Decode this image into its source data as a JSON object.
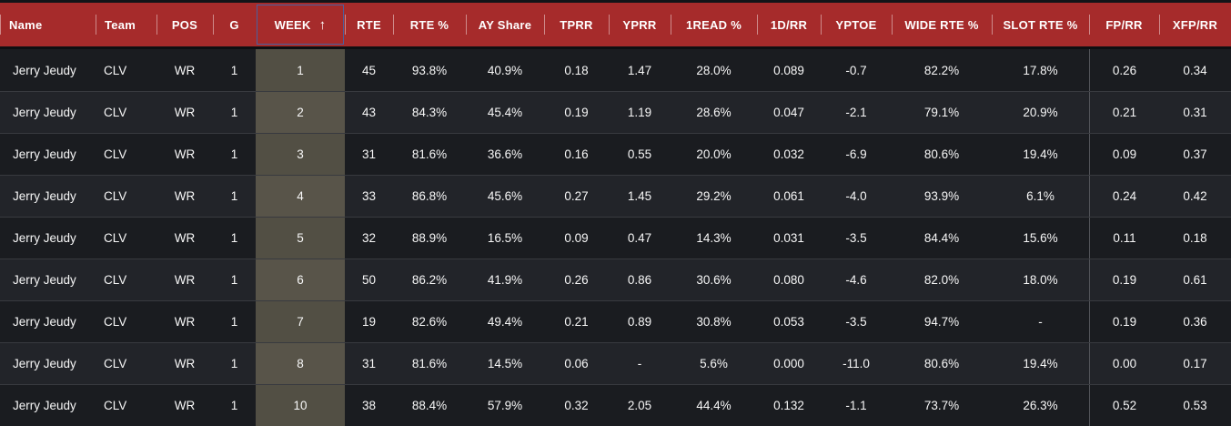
{
  "table": {
    "player": "Jerry Jeudy",
    "sort": {
      "column": "WEEK",
      "direction": "ascending",
      "arrow_glyph": "↑",
      "arrow_icon": "sort-ascending-icon"
    },
    "columns": [
      {
        "key": "name",
        "label": "Name",
        "align": "left"
      },
      {
        "key": "team",
        "label": "Team",
        "align": "left"
      },
      {
        "key": "pos",
        "label": "POS"
      },
      {
        "key": "g",
        "label": "G"
      },
      {
        "key": "week",
        "label": "WEEK",
        "sorted": true
      },
      {
        "key": "rte",
        "label": "RTE"
      },
      {
        "key": "rte_pct",
        "label": "RTE %"
      },
      {
        "key": "ay_share",
        "label": "AY Share"
      },
      {
        "key": "tprr",
        "label": "TPRR"
      },
      {
        "key": "yprr",
        "label": "YPRR"
      },
      {
        "key": "read1_pct",
        "label": "1READ %"
      },
      {
        "key": "1d_rr",
        "label": "1D/RR"
      },
      {
        "key": "yptoe",
        "label": "YPTOE"
      },
      {
        "key": "wide_rte_pct",
        "label": "WIDE RTE %"
      },
      {
        "key": "slot_rte_pct",
        "label": "SLOT RTE %",
        "divider_after": true
      },
      {
        "key": "fp_rr",
        "label": "FP/RR"
      },
      {
        "key": "xfp_rr",
        "label": "XFP/RR"
      }
    ],
    "rows": [
      [
        "Jerry Jeudy",
        "CLV",
        "WR",
        "1",
        "1",
        "45",
        "93.8%",
        "40.9%",
        "0.18",
        "1.47",
        "28.0%",
        "0.089",
        "-0.7",
        "82.2%",
        "17.8%",
        "0.26",
        "0.34"
      ],
      [
        "Jerry Jeudy",
        "CLV",
        "WR",
        "1",
        "2",
        "43",
        "84.3%",
        "45.4%",
        "0.19",
        "1.19",
        "28.6%",
        "0.047",
        "-2.1",
        "79.1%",
        "20.9%",
        "0.21",
        "0.31"
      ],
      [
        "Jerry Jeudy",
        "CLV",
        "WR",
        "1",
        "3",
        "31",
        "81.6%",
        "36.6%",
        "0.16",
        "0.55",
        "20.0%",
        "0.032",
        "-6.9",
        "80.6%",
        "19.4%",
        "0.09",
        "0.37"
      ],
      [
        "Jerry Jeudy",
        "CLV",
        "WR",
        "1",
        "4",
        "33",
        "86.8%",
        "45.6%",
        "0.27",
        "1.45",
        "29.2%",
        "0.061",
        "-4.0",
        "93.9%",
        "6.1%",
        "0.24",
        "0.42"
      ],
      [
        "Jerry Jeudy",
        "CLV",
        "WR",
        "1",
        "5",
        "32",
        "88.9%",
        "16.5%",
        "0.09",
        "0.47",
        "14.3%",
        "0.031",
        "-3.5",
        "84.4%",
        "15.6%",
        "0.11",
        "0.18"
      ],
      [
        "Jerry Jeudy",
        "CLV",
        "WR",
        "1",
        "6",
        "50",
        "86.2%",
        "41.9%",
        "0.26",
        "0.86",
        "30.6%",
        "0.080",
        "-4.6",
        "82.0%",
        "18.0%",
        "0.19",
        "0.61"
      ],
      [
        "Jerry Jeudy",
        "CLV",
        "WR",
        "1",
        "7",
        "19",
        "82.6%",
        "49.4%",
        "0.21",
        "0.89",
        "30.8%",
        "0.053",
        "-3.5",
        "94.7%",
        "-",
        "0.19",
        "0.36"
      ],
      [
        "Jerry Jeudy",
        "CLV",
        "WR",
        "1",
        "8",
        "31",
        "81.6%",
        "14.5%",
        "0.06",
        "-",
        "5.6%",
        "0.000",
        "-11.0",
        "80.6%",
        "19.4%",
        "0.00",
        "0.17"
      ],
      [
        "Jerry Jeudy",
        "CLV",
        "WR",
        "1",
        "10",
        "38",
        "88.4%",
        "57.9%",
        "0.32",
        "2.05",
        "44.4%",
        "0.132",
        "-1.1",
        "73.7%",
        "26.3%",
        "0.52",
        "0.53"
      ]
    ]
  },
  "colors": {
    "header_bg": "#a62b2b",
    "header_text": "#ffffff",
    "sorted_header_border": "#4a5f9e",
    "sorted_column_bg_odd": "#524f44",
    "sorted_column_bg_even": "#585449",
    "row_odd_bg": "#1a1c20",
    "row_even_bg": "#222429",
    "row_separator": "#383a3f",
    "body_text": "#f7f7f7"
  }
}
